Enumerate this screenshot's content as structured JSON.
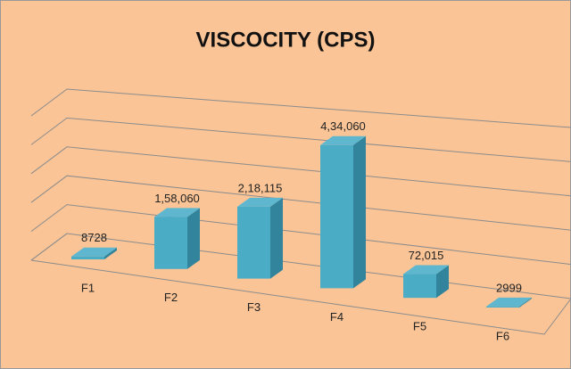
{
  "chart_data": {
    "type": "bar3d",
    "title": "VISCOCITY (CPS)",
    "categories": [
      "F1",
      "F2",
      "F3",
      "F4",
      "F5",
      "F6"
    ],
    "values": [
      8728,
      158060,
      218115,
      434060,
      72015,
      2999
    ],
    "value_labels": [
      "8728",
      "1,58,060",
      "2,18,115",
      "4,34,060",
      "72,015",
      "2999"
    ],
    "color": "#4bacc6",
    "ylim": [
      0,
      500000
    ],
    "yticks": [
      0,
      100000,
      200000,
      300000,
      400000,
      500000
    ],
    "grid": true
  }
}
